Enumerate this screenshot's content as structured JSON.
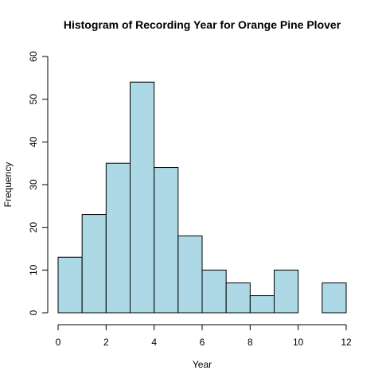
{
  "chart_data": {
    "type": "bar",
    "title": "Histogram of Recording Year for Orange Pine Plover",
    "xlabel": "Year",
    "ylabel": "Frequency",
    "bins": [
      {
        "start": 0,
        "end": 1,
        "count": 13
      },
      {
        "start": 1,
        "end": 2,
        "count": 23
      },
      {
        "start": 2,
        "end": 3,
        "count": 35
      },
      {
        "start": 3,
        "end": 4,
        "count": 54
      },
      {
        "start": 4,
        "end": 5,
        "count": 34
      },
      {
        "start": 5,
        "end": 6,
        "count": 18
      },
      {
        "start": 6,
        "end": 7,
        "count": 10
      },
      {
        "start": 7,
        "end": 8,
        "count": 7
      },
      {
        "start": 8,
        "end": 9,
        "count": 4
      },
      {
        "start": 9,
        "end": 10,
        "count": 10
      },
      {
        "start": 10,
        "end": 11,
        "count": 0
      },
      {
        "start": 11,
        "end": 12,
        "count": 7
      }
    ],
    "xlim": [
      0,
      12
    ],
    "ylim": [
      0,
      60
    ],
    "xticks": [
      0,
      2,
      4,
      6,
      8,
      10,
      12
    ],
    "yticks": [
      0,
      10,
      20,
      30,
      40,
      50,
      60
    ],
    "bar_color": "#add8e6",
    "grid": false
  }
}
